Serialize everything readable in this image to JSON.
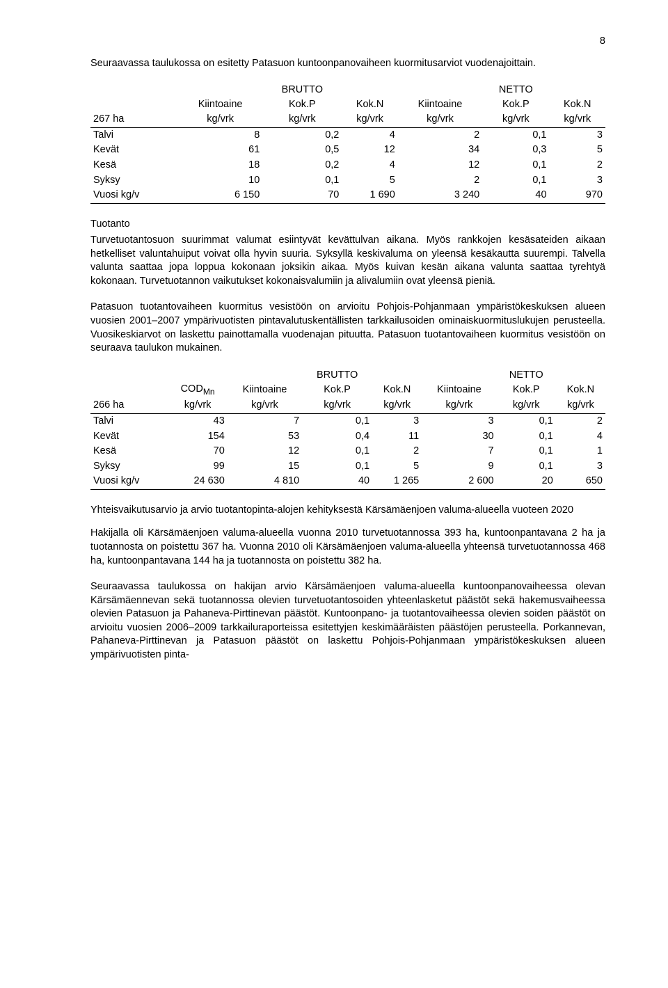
{
  "page_number": "8",
  "intro_para": "Seuraavassa taulukossa on esitetty Patasuon kuntoonpanovaiheen kuormitusarviot vuodenajoittain.",
  "table1": {
    "group_left": "BRUTTO",
    "group_right": "NETTO",
    "left_label": "267 ha",
    "cols_sub": [
      "Kiintoaine kg/vrk",
      "Kok.P kg/vrk",
      "Kok.N kg/vrk",
      "Kiintoaine kg/vrk",
      "Kok.P kg/vrk",
      "Kok.N kg/vrk"
    ],
    "rows": [
      [
        "Talvi",
        "8",
        "0,2",
        "4",
        "2",
        "0,1",
        "3"
      ],
      [
        "Kevät",
        "61",
        "0,5",
        "12",
        "34",
        "0,3",
        "5"
      ],
      [
        "Kesä",
        "18",
        "0,2",
        "4",
        "12",
        "0,1",
        "2"
      ],
      [
        "Syksy",
        "10",
        "0,1",
        "5",
        "2",
        "0,1",
        "3"
      ],
      [
        "Vuosi  kg/v",
        "6 150",
        "70",
        "1 690",
        "3 240",
        "40",
        "970"
      ]
    ]
  },
  "tuotanto_heading": "Tuotanto",
  "tuotanto_p1": "Turvetuotantosuon suurimmat valumat esiintyvät kevättulvan aikana. Myös rankkojen kesäsateiden aikaan hetkelliset valuntahuiput voivat olla hyvin suuria. Syksyllä keskivaluma on yleensä kesäkautta suurempi. Talvella valunta saattaa jopa loppua kokonaan joksikin aikaa. Myös kuivan kesän aikana valunta saattaa tyrehtyä kokonaan. Turvetuotannon vaikutukset kokonaisvalumiin ja alivalumiin ovat yleensä pieniä.",
  "tuotanto_p2": "Patasuon tuotantovaiheen kuormitus vesistöön on arvioitu Pohjois-Pohjanmaan ympäristökeskuksen alueen vuosien 2001–2007 ympärivuotisten pintavalutuskentällisten tarkkailusoiden ominaiskuormituslukujen perusteella. Vuosikeskiarvot on laskettu painottamalla vuodenajan pituutta. Patasuon tuotantovaiheen kuormitus vesistöön on seuraava taulukon mukainen.",
  "table2": {
    "group_left": "BRUTTO",
    "group_right": "NETTO",
    "left_label": "266 ha",
    "col0_sub_top": "COD",
    "col0_sub_sub": "Mn",
    "col0_sub_unit": "kg/vrk",
    "cols_sub": [
      "Kiintoaine kg/vrk",
      "Kok.P kg/vrk",
      "Kok.N kg/vrk",
      "Kiintoaine kg/vrk",
      "Kok.P kg/vrk",
      "Kok.N kg/vrk"
    ],
    "rows": [
      [
        "Talvi",
        "43",
        "7",
        "0,1",
        "3",
        "3",
        "0,1",
        "2"
      ],
      [
        "Kevät",
        "154",
        "53",
        "0,4",
        "11",
        "30",
        "0,1",
        "4"
      ],
      [
        "Kesä",
        "70",
        "12",
        "0,1",
        "2",
        "7",
        "0,1",
        "1"
      ],
      [
        "Syksy",
        "99",
        "15",
        "0,1",
        "5",
        "9",
        "0,1",
        "3"
      ],
      [
        "Vuosi kg/v",
        "24 630",
        "4 810",
        "40",
        "1 265",
        "2 600",
        "20",
        "650"
      ]
    ]
  },
  "yhteis_heading": "Yhteisvaikutusarvio ja arvio tuotantopinta-alojen kehityksestä Kärsämäenjoen valuma-alueella vuoteen 2020",
  "yhteis_p1": "Hakijalla oli Kärsämäenjoen valuma-alueella vuonna 2010 turvetuotannossa 393 ha, kuntoonpantavana 2 ha ja tuotannosta on poistettu 367 ha. Vuonna 2010 oli Kärsämäenjoen valuma-alueella yhteensä turvetuotannossa 468 ha, kuntoonpantavana 144 ha ja tuotannosta on poistettu 382 ha.",
  "yhteis_p2": "Seuraavassa taulukossa on hakijan arvio Kärsämäenjoen valuma-alueella kuntoonpanovaiheessa olevan Kärsämäennevan sekä tuotannossa olevien turvetuotantosoiden yhteenlasketut päästöt sekä hakemusvaiheessa olevien Patasuon ja Pahaneva-Pirttinevan päästöt. Kuntoonpano- ja tuotantovaiheessa olevien soiden päästöt on arvioitu vuosien 2006–2009 tarkkailuraporteissa esitettyjen keskimääräisten päästöjen perusteella. Porkannevan, Pahaneva-Pirttinevan ja Patasuon päästöt on laskettu Pohjois-Pohjanmaan ympäristökeskuksen alueen ympärivuotisten pinta-"
}
